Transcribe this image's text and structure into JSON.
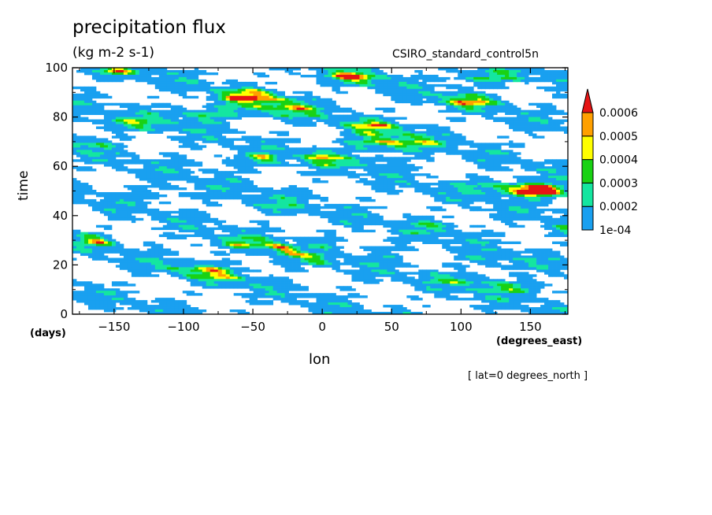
{
  "chart_data": {
    "type": "heatmap",
    "title": "precipitation flux",
    "units": "(kg m-2 s-1)",
    "model": "CSIRO_standard_control5n",
    "xlabel": "lon",
    "ylabel": "time",
    "x_unit": "(degrees_east)",
    "y_unit": "(days)",
    "annotation": "[ lat=0 degrees_north ]",
    "xlim": [
      -180,
      177
    ],
    "ylim": [
      0,
      100
    ],
    "x_ticks": [
      -150,
      -100,
      -50,
      0,
      50,
      100,
      150
    ],
    "y_ticks": [
      0,
      20,
      40,
      60,
      80,
      100
    ],
    "x_tick_labels": [
      "−150",
      "−100",
      "−50",
      "0",
      "50",
      "100",
      "150"
    ],
    "y_tick_labels": [
      "0",
      "20",
      "40",
      "60",
      "80",
      "100"
    ],
    "colorbar": {
      "levels": [
        0.0001,
        0.0002,
        0.0003,
        0.0004,
        0.0005,
        0.0006
      ],
      "level_labels": [
        "1e-04",
        "0.0002",
        "0.0003",
        "0.0004",
        "0.0005",
        "0.0006"
      ],
      "colors": [
        "#ffffff",
        "#19a0f0",
        "#14e6a0",
        "#19d214",
        "#ffff00",
        "#ffa000",
        "#e61414"
      ],
      "extend": "max"
    },
    "grid": false
  }
}
